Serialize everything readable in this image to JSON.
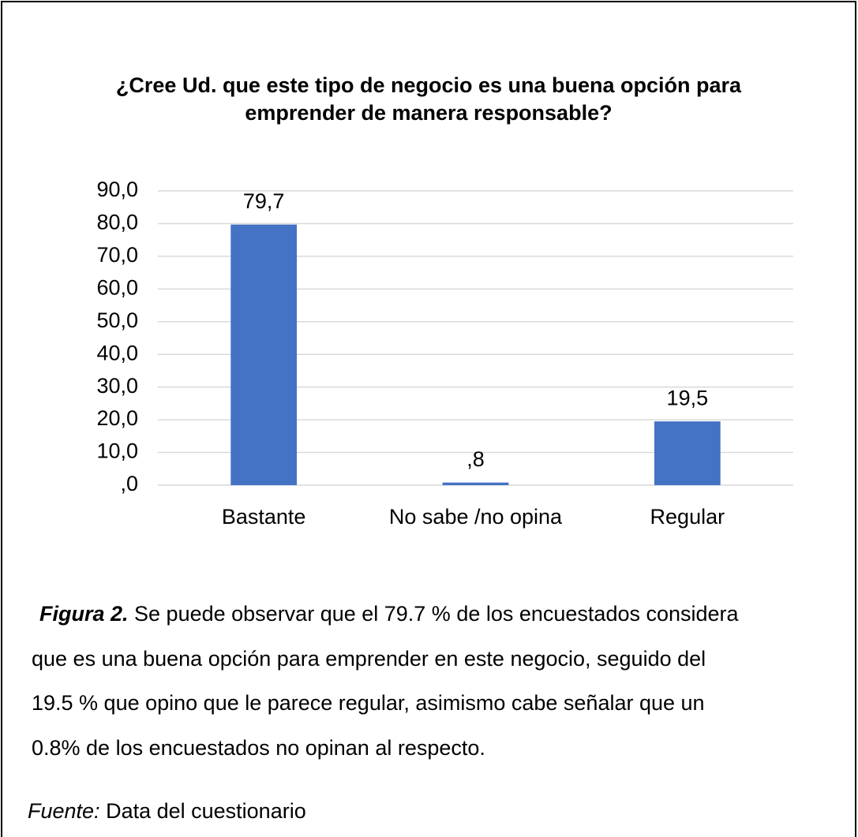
{
  "chart_data": {
    "type": "bar",
    "title": [
      "¿Cree Ud. que este tipo de negocio es una buena opción para",
      "emprender de manera responsable?"
    ],
    "categories": [
      "Bastante",
      "No sabe /no opina",
      "Regular"
    ],
    "values": [
      79.7,
      0.8,
      19.5
    ],
    "value_labels": [
      "79,7",
      ",8",
      "19,5"
    ],
    "color": "#4472c4",
    "ylim": [
      0,
      90
    ],
    "yticks": [
      {
        "value": 0,
        "label": ",0"
      },
      {
        "value": 10,
        "label": "10,0"
      },
      {
        "value": 20,
        "label": "20,0"
      },
      {
        "value": 30,
        "label": "30,0"
      },
      {
        "value": 40,
        "label": "40,0"
      },
      {
        "value": 50,
        "label": "50,0"
      },
      {
        "value": 60,
        "label": "60,0"
      },
      {
        "value": 70,
        "label": "70,0"
      },
      {
        "value": 80,
        "label": "80,0"
      },
      {
        "value": 90,
        "label": "90,0"
      }
    ],
    "grid": true
  },
  "caption": {
    "label": "Figura 2.",
    "lines": [
      " Se puede observar que el 79.7 % de los encuestados considera",
      "que es una buena opción para emprender en este negocio, seguido del",
      "19.5 % que opino que le parece regular, asimismo cabe señalar que un",
      "0.8% de los encuestados no opinan al respecto."
    ]
  },
  "source": {
    "label": "Fuente:",
    "text": " Data del cuestionario"
  }
}
